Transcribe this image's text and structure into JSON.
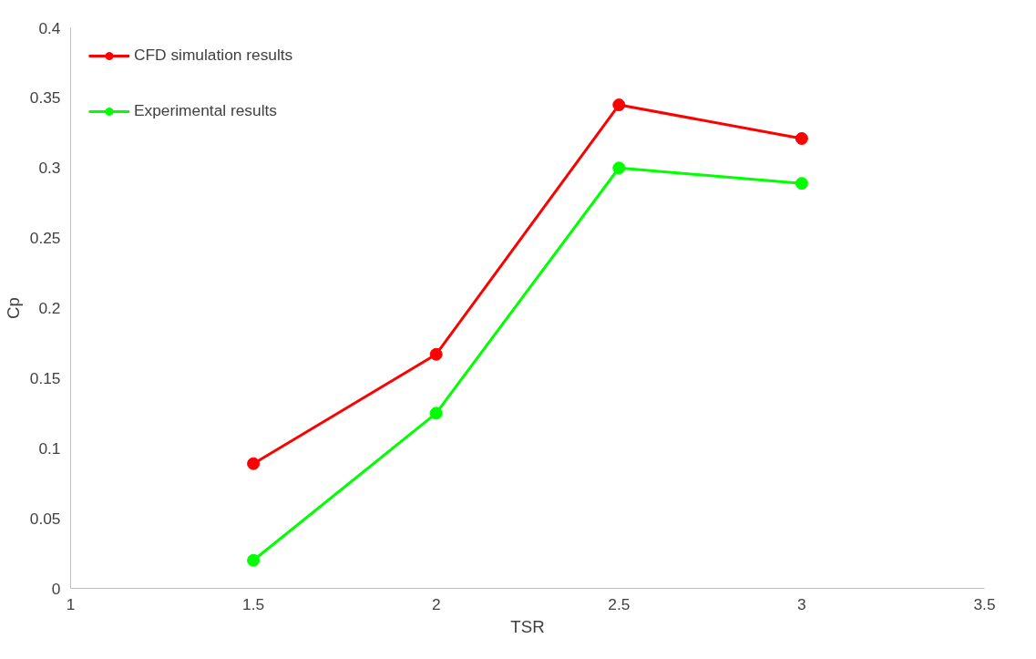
{
  "chart_data": {
    "type": "line",
    "xlabel": "TSR",
    "ylabel": "Cp",
    "x": [
      1.5,
      2,
      2.5,
      3
    ],
    "series": [
      {
        "name": "CFD simulation results",
        "color": "#ff0000",
        "values": [
          0.089,
          0.167,
          0.345,
          0.321
        ]
      },
      {
        "name": "Experimental results",
        "color": "#00ff00",
        "values": [
          0.02,
          0.125,
          0.3,
          0.289
        ]
      }
    ],
    "xlim": [
      1,
      3.5
    ],
    "xticks": [
      1,
      1.5,
      2,
      2.5,
      3,
      3.5
    ],
    "ylim": [
      0,
      0.4
    ],
    "yticks": [
      0,
      0.05,
      0.1,
      0.15,
      0.2,
      0.25,
      0.3,
      0.35,
      0.4
    ],
    "grid": false,
    "legend": "top left",
    "marker": "circle",
    "line_style": "solid"
  }
}
